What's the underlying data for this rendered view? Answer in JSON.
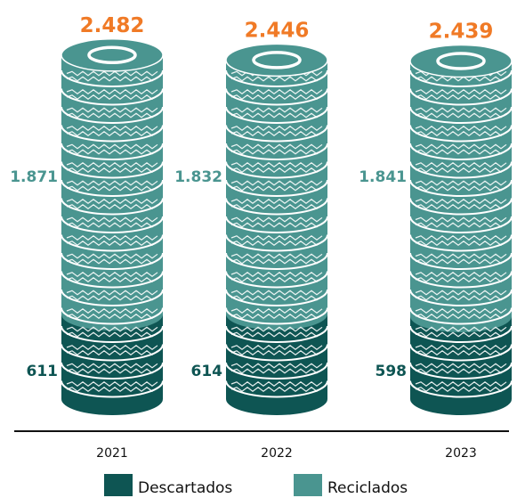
{
  "chart_data": {
    "type": "bar",
    "stacked": true,
    "categories": [
      "2021",
      "2022",
      "2023"
    ],
    "series": [
      {
        "name": "Descartados",
        "values": [
          611,
          614,
          598
        ],
        "color": "#0e5553"
      },
      {
        "name": "Reciclados",
        "values": [
          1871,
          1832,
          1841
        ],
        "color": "#4a9590"
      }
    ],
    "totals": [
      2482,
      2446,
      2439
    ],
    "value_labels": {
      "totals": [
        "2.482",
        "2.446",
        "2.439"
      ],
      "Reciclados": [
        "1.871",
        "1.832",
        "1.841"
      ],
      "Descartados": [
        "611",
        "614",
        "598"
      ]
    },
    "title": "",
    "xlabel": "",
    "ylabel": "",
    "legend_position": "bottom",
    "total_label_color": "#f07a26",
    "mark_style": "stacked-tires"
  },
  "legend": {
    "items": [
      {
        "label": "Descartados",
        "color": "#0e5553"
      },
      {
        "label": "Reciclados",
        "color": "#4a9590"
      }
    ]
  }
}
